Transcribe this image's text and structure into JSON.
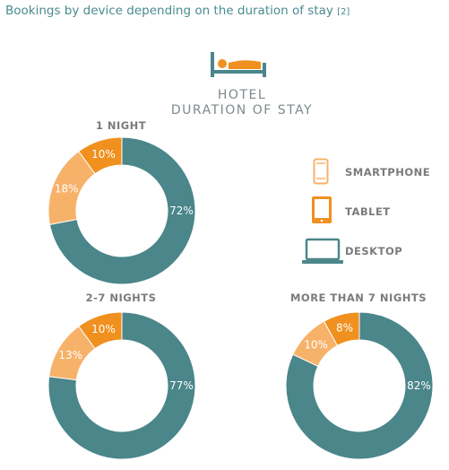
{
  "header": {
    "title": "Bookings by device depending on the duration of stay",
    "ref": "[2]"
  },
  "hotel": {
    "line1": "HOTEL",
    "line2": "DURATION OF STAY",
    "icon": "bed-icon"
  },
  "legend": [
    {
      "label": "SMARTPHONE",
      "icon": "smartphone-icon",
      "color": "#f7b26a"
    },
    {
      "label": "TABLET",
      "icon": "tablet-icon",
      "color": "#f0901f"
    },
    {
      "label": "DESKTOP",
      "icon": "desktop-icon",
      "color": "#4a868a"
    }
  ],
  "chart_data": [
    {
      "type": "pie",
      "title": "1 NIGHT",
      "categories": [
        "DESKTOP",
        "SMARTPHONE",
        "TABLET"
      ],
      "values": [
        72,
        18,
        10
      ],
      "labels": [
        "72%",
        "18%",
        "10%"
      ]
    },
    {
      "type": "pie",
      "title": "2-7 NIGHTS",
      "categories": [
        "DESKTOP",
        "SMARTPHONE",
        "TABLET"
      ],
      "values": [
        77,
        13,
        10
      ],
      "labels": [
        "77%",
        "13%",
        "10%"
      ]
    },
    {
      "type": "pie",
      "title": "MORE THAN 7 NIGHTS",
      "categories": [
        "DESKTOP",
        "SMARTPHONE",
        "TABLET"
      ],
      "values": [
        82,
        10,
        8
      ],
      "labels": [
        "82%",
        "10%",
        "8%"
      ]
    }
  ],
  "colors": {
    "desktop": "#4a868a",
    "smartphone": "#f7b26a",
    "tablet": "#f0901f",
    "text": "#7b7b7b",
    "title": "#4a8b8f"
  }
}
